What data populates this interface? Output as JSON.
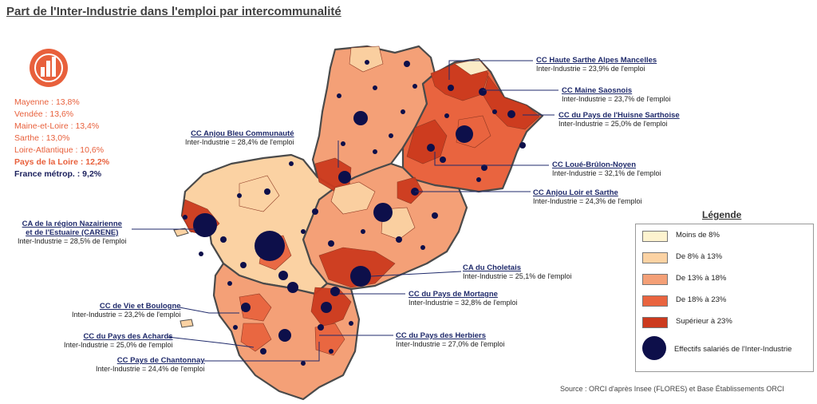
{
  "title": "Part de l'Inter-Industrie dans l'emploi par intercommunalité",
  "stats": {
    "mayenne": "Mayenne : 13,8%",
    "vendee": "Vendée : 13,6%",
    "maine_et_loire": "Maine-et-Loire : 13,4%",
    "sarthe": "Sarthe : 13,0%",
    "loire_atlantique": "Loire-Atlantique : 10,6%",
    "pays_de_la_loire": "Pays de la Loire : 12,2%",
    "france": "France métrop. : 9,2%"
  },
  "annotations": [
    {
      "name": "CC Haute Sarthe Alpes Mancelles",
      "value": "Inter-Industrie = 23,9% de l'emploi"
    },
    {
      "name": "CC Maine Saosnois",
      "value": "Inter-Industrie = 23,7% de l'emploi"
    },
    {
      "name": "CC du Pays de l'Huisne Sarthoise",
      "value": "Inter-Industrie = 25,0% de l'emploi"
    },
    {
      "name": "CC Anjou Bleu Communauté",
      "value": "Inter-Industrie = 28,4% de l'emploi"
    },
    {
      "name": "CC Loué-Brûlon-Noyen",
      "value": "Inter-Industrie = 32,1% de l'emploi"
    },
    {
      "name": "CC Anjou Loir et Sarthe",
      "value": "Inter-Industrie = 24,3% de l'emploi"
    },
    {
      "name": "CA de la région Nazairienne",
      "name2": "et de l'Estuaire (CARENE)",
      "value": "Inter-Industrie = 28,5% de l'emploi"
    },
    {
      "name": "CA du Choletais",
      "value": "Inter-Industrie = 25,1% de l'emploi"
    },
    {
      "name": "CC du Pays de Mortagne",
      "value": "Inter-Industrie = 32,8% de l'emploi"
    },
    {
      "name": "CC de Vie et Boulogne",
      "value": "Inter-Industrie = 23,2% de l'emploi"
    },
    {
      "name": "CC du Pays des Achards",
      "value": "Inter-Industrie = 25,0% de l'emploi"
    },
    {
      "name": "CC du Pays des Herbiers",
      "value": "Inter-Industrie = 27,0% de l'emploi"
    },
    {
      "name": "CC Pays de Chantonnay",
      "value": "Inter-Industrie = 24,4% de l'emploi"
    }
  ],
  "legend": {
    "title": "Légende",
    "classes": [
      {
        "label": "Moins de 8%",
        "color": "#fdf3cf"
      },
      {
        "label": "De 8% à 13%",
        "color": "#fbd2a3"
      },
      {
        "label": "De 13% à 18%",
        "color": "#f4a077"
      },
      {
        "label": "De 18% à 23%",
        "color": "#e9643f"
      },
      {
        "label": "Supérieur à 23%",
        "color": "#cc3a1e"
      }
    ],
    "bubble_label": "Effectifs salariés de l'Inter-Industrie",
    "bubble_color": "#0d0f4a"
  },
  "source": "Source : ORCI d'après Insee (FLORES) et Base Établissements ORCI",
  "colors": {
    "accent": "#e8603c",
    "navy": "#1a1f5c"
  },
  "icons": {
    "logo": "orci-logo-icon"
  }
}
